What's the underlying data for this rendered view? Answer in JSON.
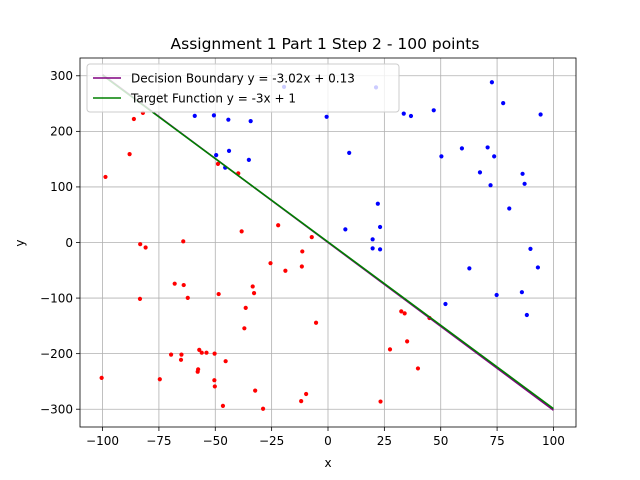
{
  "chart_data": {
    "type": "scatter",
    "title": "Assignment 1 Part 1 Step 2 - 100 points",
    "xlabel": "x",
    "ylabel": "y",
    "xlim": [
      -110,
      110
    ],
    "ylim": [
      -332,
      332
    ],
    "xticks": [
      -100,
      -75,
      -50,
      -25,
      0,
      25,
      50,
      75,
      100
    ],
    "yticks": [
      -300,
      -200,
      -100,
      0,
      100,
      200,
      300
    ],
    "grid": true,
    "legend_position": "top-left",
    "lines": [
      {
        "name": "Decision Boundary y = -3.02x + 0.13",
        "color": "#800080",
        "slope": -3.02,
        "intercept": 0.13,
        "x": [
          -100,
          100
        ]
      },
      {
        "name": "Target Function y = -3x + 1",
        "color": "#008000",
        "slope": -3,
        "intercept": 1,
        "x": [
          -100,
          100
        ]
      }
    ],
    "series": [
      {
        "color": "#0000ff",
        "points": [
          [
            -19.5,
            280.1
          ],
          [
            -59.1,
            227.9
          ],
          [
            -50.6,
            228.7
          ],
          [
            -44.2,
            221.0
          ],
          [
            -34.3,
            218.4
          ],
          [
            -0.6,
            226.2
          ],
          [
            -49.6,
            157.2
          ],
          [
            -43.9,
            164.9
          ],
          [
            -35.1,
            148.7
          ],
          [
            -45.6,
            134.7
          ],
          [
            9.4,
            161.3
          ],
          [
            21.3,
            279.2
          ],
          [
            33.6,
            231.9
          ],
          [
            36.8,
            227.6
          ],
          [
            46.9,
            237.9
          ],
          [
            50.3,
            155.0
          ],
          [
            59.4,
            169.4
          ],
          [
            70.8,
            171.1
          ],
          [
            72.1,
            103.1
          ],
          [
            73.7,
            155.0
          ],
          [
            72.7,
            288.4
          ],
          [
            77.7,
            250.8
          ],
          [
            94.3,
            230.3
          ],
          [
            67.4,
            126.2
          ],
          [
            86.3,
            123.6
          ],
          [
            87.2,
            105.6
          ],
          [
            80.4,
            61.2
          ],
          [
            22.1,
            69.8
          ],
          [
            23.1,
            27.9
          ],
          [
            7.7,
            23.6
          ],
          [
            19.8,
            5.7
          ],
          [
            19.8,
            -10.6
          ],
          [
            23.1,
            -12.3
          ],
          [
            89.8,
            -11.5
          ],
          [
            93.1,
            -44.9
          ],
          [
            62.7,
            -46.6
          ],
          [
            74.8,
            -94.5
          ],
          [
            52.1,
            -110.7
          ],
          [
            86.0,
            -89.4
          ],
          [
            88.2,
            -130.4
          ]
        ]
      },
      {
        "color": "#ff0000",
        "points": [
          [
            -98.7,
            118.0
          ],
          [
            -88.0,
            159.0
          ],
          [
            -86.1,
            222.2
          ],
          [
            -82.1,
            233.3
          ],
          [
            -39.8,
            124.5
          ],
          [
            -48.8,
            141.5
          ],
          [
            -38.3,
            20.0
          ],
          [
            -22.1,
            31.1
          ],
          [
            -7.2,
            9.7
          ],
          [
            -83.3,
            -3.0
          ],
          [
            -80.9,
            -9.0
          ],
          [
            -64.2,
            2.1
          ],
          [
            -83.4,
            -101.5
          ],
          [
            -68.0,
            -74.1
          ],
          [
            -64.0,
            -76.6
          ],
          [
            -62.2,
            -99.6
          ],
          [
            -48.5,
            -92.8
          ],
          [
            -36.5,
            -117.6
          ],
          [
            -37.1,
            -154.4
          ],
          [
            -33.4,
            -79.1
          ],
          [
            -32.8,
            -91.1
          ],
          [
            -25.5,
            -37.2
          ],
          [
            -18.9,
            -50.9
          ],
          [
            -11.6,
            -43.2
          ],
          [
            -11.4,
            -16.1
          ],
          [
            -5.3,
            -144.4
          ],
          [
            -100.4,
            -243.6
          ],
          [
            -74.6,
            -246.1
          ],
          [
            -69.6,
            -201.7
          ],
          [
            -65.0,
            -201.7
          ],
          [
            -65.2,
            -211.1
          ],
          [
            -57.6,
            -228.2
          ],
          [
            -57.8,
            -232.5
          ],
          [
            -57.1,
            -193.2
          ],
          [
            -56.0,
            -198.3
          ],
          [
            -53.9,
            -198.3
          ],
          [
            -50.3,
            -200.0
          ],
          [
            -50.4,
            -247.8
          ],
          [
            -50.2,
            -259.0
          ],
          [
            -46.6,
            -294.0
          ],
          [
            -45.4,
            -213.6
          ],
          [
            -32.3,
            -266.6
          ],
          [
            -28.8,
            -299.1
          ],
          [
            -9.7,
            -272.6
          ],
          [
            -11.9,
            -285.4
          ],
          [
            23.3,
            -286.2
          ],
          [
            27.5,
            -192.3
          ],
          [
            32.5,
            -124.0
          ],
          [
            34.0,
            -127.5
          ],
          [
            35.1,
            -177.9
          ],
          [
            39.9,
            -226.6
          ],
          [
            45.0,
            -135.9
          ]
        ]
      }
    ]
  }
}
